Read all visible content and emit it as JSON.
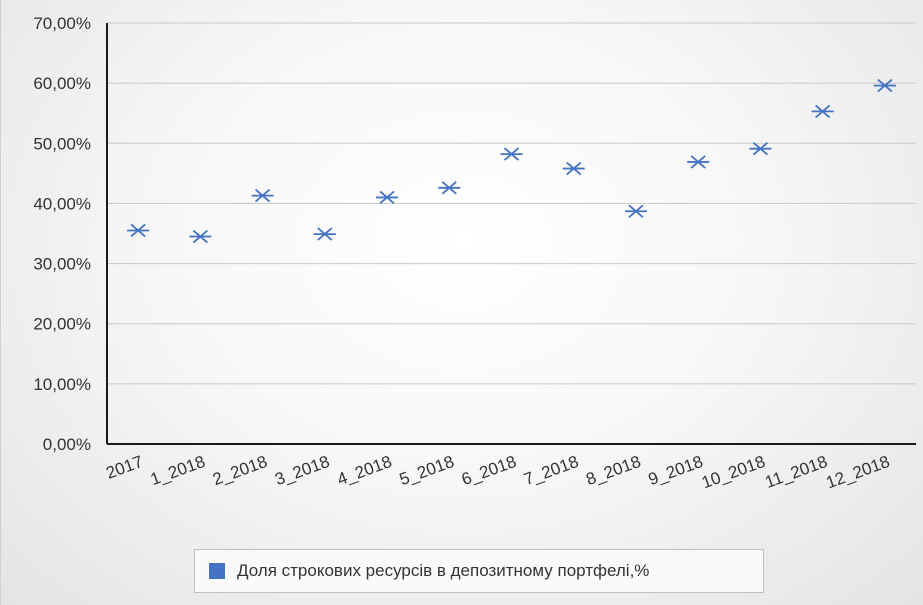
{
  "chart_data": {
    "type": "scatter",
    "categories": [
      "2017",
      "1_2018",
      "2_2018",
      "3_2018",
      "4_2018",
      "5_2018",
      "6_2018",
      "7_2018",
      "8_2018",
      "9_2018",
      "10_2018",
      "11_2018",
      "12_2018"
    ],
    "series": [
      {
        "name": "Доля строкових ресурсів в депозитному портфелі,%",
        "values": [
          35.5,
          34.5,
          41.3,
          34.9,
          41.0,
          42.6,
          48.2,
          45.8,
          38.7,
          46.9,
          49.1,
          55.3,
          59.6
        ],
        "color": "#4472C4",
        "marker": "asterisk"
      }
    ],
    "y_ticks": [
      "0,00%",
      "10,00%",
      "20,00%",
      "30,00%",
      "40,00%",
      "50,00%",
      "60,00%",
      "70,00%"
    ],
    "ylim": [
      0,
      70
    ],
    "grid": true,
    "legend_position": "bottom",
    "title": "",
    "xlabel": "",
    "ylabel": ""
  }
}
